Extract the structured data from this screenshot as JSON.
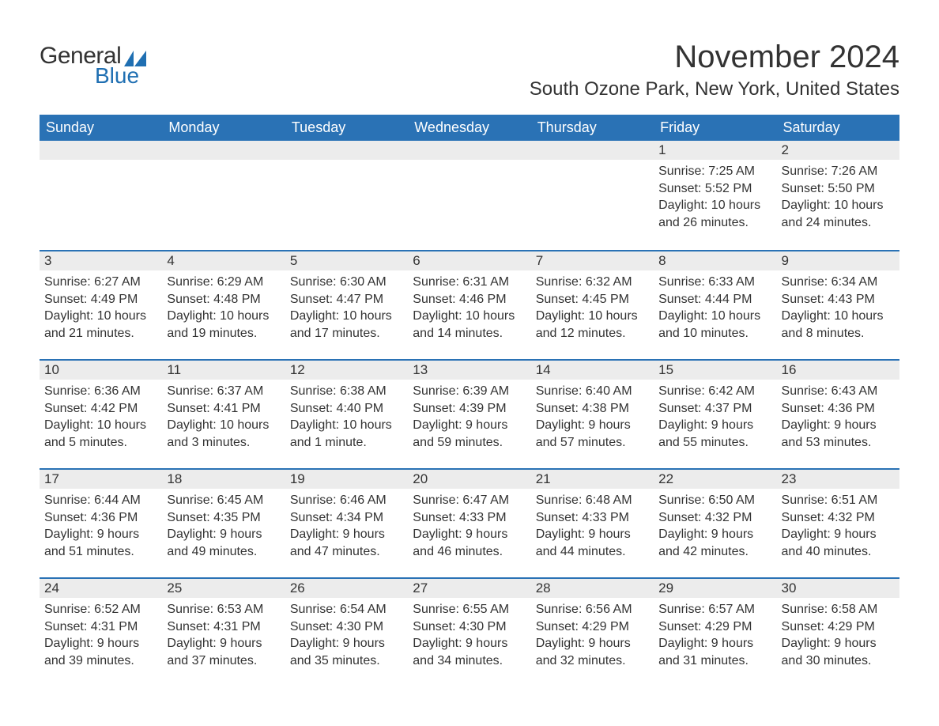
{
  "logo": {
    "word1": "General",
    "word2": "Blue",
    "icon_color": "#1f6fb2"
  },
  "title": "November 2024",
  "subtitle": "South Ozone Park, New York, United States",
  "colors": {
    "header_bg": "#2a72b5",
    "header_text": "#ffffff",
    "daynum_bg": "#ececec",
    "row_divider": "#2a72b5",
    "body_text": "#333333",
    "page_bg": "#ffffff"
  },
  "typography": {
    "title_fontsize": 40,
    "subtitle_fontsize": 24,
    "header_fontsize": 18,
    "cell_fontsize": 16
  },
  "weekdays": [
    "Sunday",
    "Monday",
    "Tuesday",
    "Wednesday",
    "Thursday",
    "Friday",
    "Saturday"
  ],
  "grid": [
    [
      null,
      null,
      null,
      null,
      null,
      {
        "n": "1",
        "sunrise": "7:25 AM",
        "sunset": "5:52 PM",
        "daylight": "10 hours and 26 minutes."
      },
      {
        "n": "2",
        "sunrise": "7:26 AM",
        "sunset": "5:50 PM",
        "daylight": "10 hours and 24 minutes."
      }
    ],
    [
      {
        "n": "3",
        "sunrise": "6:27 AM",
        "sunset": "4:49 PM",
        "daylight": "10 hours and 21 minutes."
      },
      {
        "n": "4",
        "sunrise": "6:29 AM",
        "sunset": "4:48 PM",
        "daylight": "10 hours and 19 minutes."
      },
      {
        "n": "5",
        "sunrise": "6:30 AM",
        "sunset": "4:47 PM",
        "daylight": "10 hours and 17 minutes."
      },
      {
        "n": "6",
        "sunrise": "6:31 AM",
        "sunset": "4:46 PM",
        "daylight": "10 hours and 14 minutes."
      },
      {
        "n": "7",
        "sunrise": "6:32 AM",
        "sunset": "4:45 PM",
        "daylight": "10 hours and 12 minutes."
      },
      {
        "n": "8",
        "sunrise": "6:33 AM",
        "sunset": "4:44 PM",
        "daylight": "10 hours and 10 minutes."
      },
      {
        "n": "9",
        "sunrise": "6:34 AM",
        "sunset": "4:43 PM",
        "daylight": "10 hours and 8 minutes."
      }
    ],
    [
      {
        "n": "10",
        "sunrise": "6:36 AM",
        "sunset": "4:42 PM",
        "daylight": "10 hours and 5 minutes."
      },
      {
        "n": "11",
        "sunrise": "6:37 AM",
        "sunset": "4:41 PM",
        "daylight": "10 hours and 3 minutes."
      },
      {
        "n": "12",
        "sunrise": "6:38 AM",
        "sunset": "4:40 PM",
        "daylight": "10 hours and 1 minute."
      },
      {
        "n": "13",
        "sunrise": "6:39 AM",
        "sunset": "4:39 PM",
        "daylight": "9 hours and 59 minutes."
      },
      {
        "n": "14",
        "sunrise": "6:40 AM",
        "sunset": "4:38 PM",
        "daylight": "9 hours and 57 minutes."
      },
      {
        "n": "15",
        "sunrise": "6:42 AM",
        "sunset": "4:37 PM",
        "daylight": "9 hours and 55 minutes."
      },
      {
        "n": "16",
        "sunrise": "6:43 AM",
        "sunset": "4:36 PM",
        "daylight": "9 hours and 53 minutes."
      }
    ],
    [
      {
        "n": "17",
        "sunrise": "6:44 AM",
        "sunset": "4:36 PM",
        "daylight": "9 hours and 51 minutes."
      },
      {
        "n": "18",
        "sunrise": "6:45 AM",
        "sunset": "4:35 PM",
        "daylight": "9 hours and 49 minutes."
      },
      {
        "n": "19",
        "sunrise": "6:46 AM",
        "sunset": "4:34 PM",
        "daylight": "9 hours and 47 minutes."
      },
      {
        "n": "20",
        "sunrise": "6:47 AM",
        "sunset": "4:33 PM",
        "daylight": "9 hours and 46 minutes."
      },
      {
        "n": "21",
        "sunrise": "6:48 AM",
        "sunset": "4:33 PM",
        "daylight": "9 hours and 44 minutes."
      },
      {
        "n": "22",
        "sunrise": "6:50 AM",
        "sunset": "4:32 PM",
        "daylight": "9 hours and 42 minutes."
      },
      {
        "n": "23",
        "sunrise": "6:51 AM",
        "sunset": "4:32 PM",
        "daylight": "9 hours and 40 minutes."
      }
    ],
    [
      {
        "n": "24",
        "sunrise": "6:52 AM",
        "sunset": "4:31 PM",
        "daylight": "9 hours and 39 minutes."
      },
      {
        "n": "25",
        "sunrise": "6:53 AM",
        "sunset": "4:31 PM",
        "daylight": "9 hours and 37 minutes."
      },
      {
        "n": "26",
        "sunrise": "6:54 AM",
        "sunset": "4:30 PM",
        "daylight": "9 hours and 35 minutes."
      },
      {
        "n": "27",
        "sunrise": "6:55 AM",
        "sunset": "4:30 PM",
        "daylight": "9 hours and 34 minutes."
      },
      {
        "n": "28",
        "sunrise": "6:56 AM",
        "sunset": "4:29 PM",
        "daylight": "9 hours and 32 minutes."
      },
      {
        "n": "29",
        "sunrise": "6:57 AM",
        "sunset": "4:29 PM",
        "daylight": "9 hours and 31 minutes."
      },
      {
        "n": "30",
        "sunrise": "6:58 AM",
        "sunset": "4:29 PM",
        "daylight": "9 hours and 30 minutes."
      }
    ]
  ],
  "labels": {
    "sunrise": "Sunrise:",
    "sunset": "Sunset:",
    "daylight": "Daylight:"
  }
}
